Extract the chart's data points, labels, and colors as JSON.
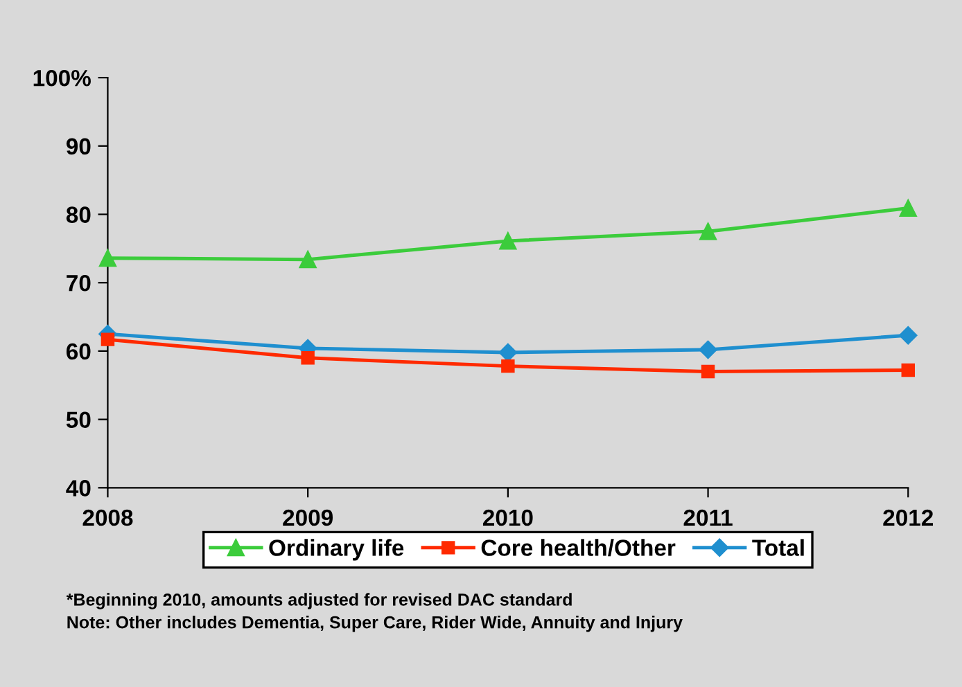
{
  "chart_data": {
    "type": "line",
    "x": [
      2008,
      2009,
      2010,
      2011,
      2012
    ],
    "xlim": [
      2008,
      2012
    ],
    "xticks": [
      2008,
      2009,
      2010,
      2011,
      2012
    ],
    "ylim": [
      40,
      100
    ],
    "yticks": [
      40,
      50,
      60,
      70,
      80,
      {
        "value": 90,
        "label": "90"
      },
      {
        "value": 100,
        "label": "100%"
      }
    ],
    "series": [
      {
        "name": "Ordinary life",
        "color": "#3ccc3c",
        "marker": "triangle",
        "values": [
          73.6,
          73.4,
          76.1,
          77.5,
          80.9
        ]
      },
      {
        "name": "Core health/Other",
        "color": "#ff2a00",
        "marker": "square",
        "values": [
          61.7,
          59.0,
          57.8,
          57.0,
          57.2
        ]
      },
      {
        "name": "Total",
        "color": "#1f8fcf",
        "marker": "diamond",
        "values": [
          62.5,
          60.4,
          59.8,
          60.2,
          62.3
        ]
      }
    ],
    "grid": false,
    "legend": "bottom",
    "annotations": [
      "*Beginning 2010, amounts adjusted for revised DAC standard",
      "Note: Other includes Dementia, Super Care, Rider Wide, Annuity and Injury"
    ]
  }
}
